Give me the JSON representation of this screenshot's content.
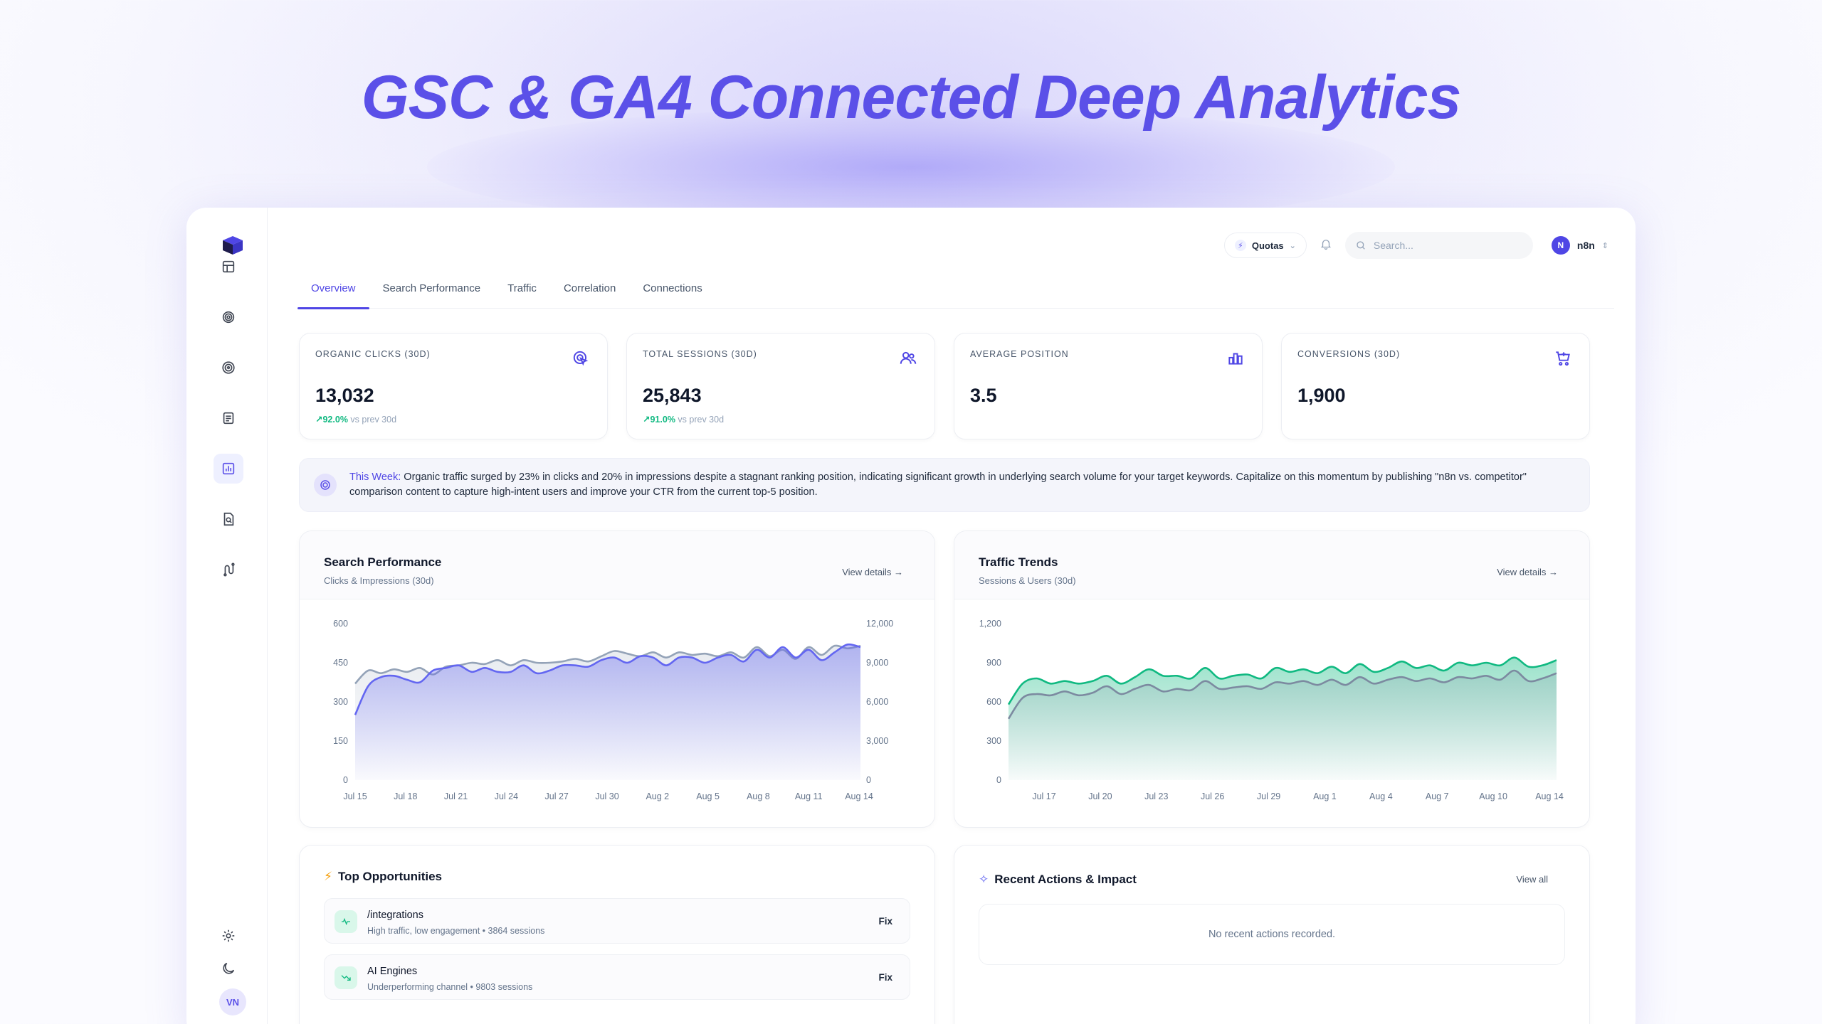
{
  "hero": {
    "title": "GSC & GA4 Connected Deep Analytics"
  },
  "sidebar": {
    "items": [
      {
        "icon": "layout-icon"
      },
      {
        "icon": "fingerprint-icon"
      },
      {
        "icon": "target-icon"
      },
      {
        "icon": "document-icon"
      },
      {
        "icon": "chart-icon",
        "active": true
      },
      {
        "icon": "file-search-icon"
      },
      {
        "icon": "workflow-icon"
      }
    ],
    "bottom": [
      {
        "icon": "gear-icon"
      },
      {
        "icon": "moon-icon"
      }
    ],
    "avatar_initials": "VN"
  },
  "topbar": {
    "quotas_label": "Quotas",
    "search_placeholder": "Search...",
    "user_initial": "N",
    "user_name": "n8n"
  },
  "tabs": [
    "Overview",
    "Search Performance",
    "Traffic",
    "Correlation",
    "Connections"
  ],
  "active_tab": "Overview",
  "stats": [
    {
      "label": "ORGANIC CLICKS (30D)",
      "value": "13,032",
      "delta": "92.0%",
      "delta_suffix": "vs prev 30d",
      "icon": "cursor-click-icon"
    },
    {
      "label": "TOTAL SESSIONS (30D)",
      "value": "25,843",
      "delta": "91.0%",
      "delta_suffix": "vs prev 30d",
      "icon": "users-icon"
    },
    {
      "label": "AVERAGE POSITION",
      "value": "3.5",
      "icon": "bar-chart-icon"
    },
    {
      "label": "CONVERSIONS (30D)",
      "value": "1,900",
      "icon": "cart-icon"
    }
  ],
  "insight": {
    "lead": "This Week:",
    "text": "Organic traffic surged by 23% in clicks and 20% in impressions despite a stagnant ranking position, indicating significant growth in underlying search volume for your target keywords. Capitalize on this momentum by publishing \"n8n vs. competitor\" comparison content to capture high-intent users and improve your CTR from the current top-5 position."
  },
  "search_card": {
    "title": "Search Performance",
    "subtitle": "Clicks & Impressions (30d)",
    "link": "View details"
  },
  "traffic_card": {
    "title": "Traffic Trends",
    "subtitle": "Sessions & Users (30d)",
    "link": "View details"
  },
  "chart_data": [
    {
      "type": "area",
      "title": "Search Performance",
      "x_ticks": [
        "Jul 15",
        "Jul 18",
        "Jul 21",
        "Jul 24",
        "Jul 27",
        "Jul 30",
        "Aug 2",
        "Aug 5",
        "Aug 8",
        "Aug 11",
        "Aug 14"
      ],
      "y_left_ticks": [
        "600",
        "450",
        "300",
        "150",
        "0"
      ],
      "y_right_ticks": [
        "12,000",
        "9,000",
        "6,000",
        "3,000",
        "0"
      ],
      "ylim_left": [
        0,
        600
      ],
      "ylim_right": [
        0,
        12000
      ],
      "series": [
        {
          "axis": "left",
          "color": "#6366f1",
          "values": [
            250,
            360,
            395,
            400,
            385,
            375,
            420,
            430,
            440,
            415,
            430,
            415,
            415,
            440,
            410,
            420,
            440,
            440,
            435,
            460,
            470,
            450,
            475,
            470,
            440,
            470,
            470,
            450,
            470,
            480,
            455,
            500,
            470,
            510,
            470,
            500,
            460,
            490,
            520,
            510
          ]
        },
        {
          "axis": "right",
          "color": "#94a3b8",
          "values": [
            7400,
            8400,
            8200,
            8500,
            8300,
            8600,
            8100,
            8700,
            8800,
            9000,
            8900,
            9200,
            8800,
            9200,
            9000,
            9000,
            9100,
            9300,
            9100,
            9500,
            9900,
            9700,
            9500,
            9800,
            9400,
            9800,
            9600,
            9700,
            9500,
            9800,
            9400,
            10200,
            9500,
            10000,
            9300,
            10200,
            9600,
            10300,
            10100,
            10300
          ]
        }
      ]
    },
    {
      "type": "area",
      "title": "Traffic Trends",
      "x_ticks": [
        "Jul 17",
        "Jul 20",
        "Jul 23",
        "Jul 26",
        "Jul 29",
        "Aug 1",
        "Aug 4",
        "Aug 7",
        "Aug 10",
        "Aug 14"
      ],
      "y_ticks": [
        "1,200",
        "900",
        "600",
        "300",
        "0"
      ],
      "ylim": [
        0,
        1200
      ],
      "series": [
        {
          "color": "#10b981",
          "values": [
            580,
            740,
            780,
            740,
            760,
            740,
            760,
            800,
            740,
            790,
            850,
            800,
            800,
            780,
            860,
            780,
            800,
            810,
            780,
            860,
            830,
            850,
            820,
            870,
            820,
            890,
            830,
            860,
            910,
            860,
            880,
            840,
            900,
            880,
            900,
            880,
            940,
            870,
            880,
            920
          ]
        },
        {
          "color": "#7c8aa0",
          "values": [
            470,
            630,
            660,
            650,
            680,
            650,
            670,
            720,
            660,
            700,
            730,
            680,
            700,
            690,
            760,
            700,
            710,
            720,
            700,
            750,
            740,
            760,
            730,
            770,
            730,
            790,
            740,
            770,
            790,
            760,
            780,
            750,
            790,
            780,
            800,
            770,
            840,
            760,
            780,
            820
          ]
        }
      ]
    }
  ],
  "opportunities": {
    "title": "Top Opportunities",
    "items": [
      {
        "name": "/integrations",
        "desc": "High traffic, low engagement • 3864 sessions",
        "action": "Fix",
        "icon": "activity-icon"
      },
      {
        "name": "AI Engines",
        "desc": "Underperforming channel • 9803 sessions",
        "action": "Fix",
        "icon": "trend-down-icon"
      }
    ]
  },
  "recent": {
    "title": "Recent Actions & Impact",
    "link": "View all",
    "empty": "No recent actions recorded."
  }
}
